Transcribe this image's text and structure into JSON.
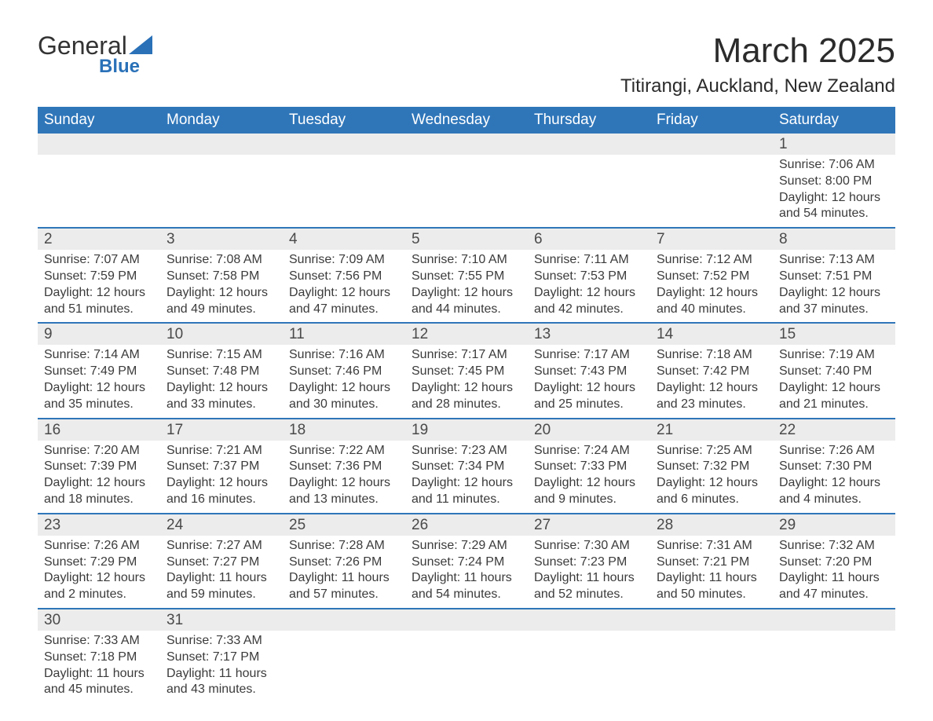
{
  "logo": {
    "main": "General",
    "sub": "Blue",
    "tri_color": "#2a71b8"
  },
  "title": "March 2025",
  "location": "Titirangi, Auckland, New Zealand",
  "colors": {
    "header_bg": "#2f76b9",
    "header_text": "#ffffff",
    "daynum_bg": "#ececec",
    "row_border": "#2f76b9",
    "body_text": "#3b3b3b",
    "page_bg": "#ffffff"
  },
  "fonts": {
    "title_size_pt": 33,
    "location_size_pt": 18,
    "header_size_pt": 14,
    "daynum_size_pt": 14,
    "info_size_pt": 12
  },
  "day_headers": [
    "Sunday",
    "Monday",
    "Tuesday",
    "Wednesday",
    "Thursday",
    "Friday",
    "Saturday"
  ],
  "weeks": [
    [
      null,
      null,
      null,
      null,
      null,
      null,
      {
        "n": "1",
        "sunrise": "7:06 AM",
        "sunset": "8:00 PM",
        "daylight": "12 hours and 54 minutes."
      }
    ],
    [
      {
        "n": "2",
        "sunrise": "7:07 AM",
        "sunset": "7:59 PM",
        "daylight": "12 hours and 51 minutes."
      },
      {
        "n": "3",
        "sunrise": "7:08 AM",
        "sunset": "7:58 PM",
        "daylight": "12 hours and 49 minutes."
      },
      {
        "n": "4",
        "sunrise": "7:09 AM",
        "sunset": "7:56 PM",
        "daylight": "12 hours and 47 minutes."
      },
      {
        "n": "5",
        "sunrise": "7:10 AM",
        "sunset": "7:55 PM",
        "daylight": "12 hours and 44 minutes."
      },
      {
        "n": "6",
        "sunrise": "7:11 AM",
        "sunset": "7:53 PM",
        "daylight": "12 hours and 42 minutes."
      },
      {
        "n": "7",
        "sunrise": "7:12 AM",
        "sunset": "7:52 PM",
        "daylight": "12 hours and 40 minutes."
      },
      {
        "n": "8",
        "sunrise": "7:13 AM",
        "sunset": "7:51 PM",
        "daylight": "12 hours and 37 minutes."
      }
    ],
    [
      {
        "n": "9",
        "sunrise": "7:14 AM",
        "sunset": "7:49 PM",
        "daylight": "12 hours and 35 minutes."
      },
      {
        "n": "10",
        "sunrise": "7:15 AM",
        "sunset": "7:48 PM",
        "daylight": "12 hours and 33 minutes."
      },
      {
        "n": "11",
        "sunrise": "7:16 AM",
        "sunset": "7:46 PM",
        "daylight": "12 hours and 30 minutes."
      },
      {
        "n": "12",
        "sunrise": "7:17 AM",
        "sunset": "7:45 PM",
        "daylight": "12 hours and 28 minutes."
      },
      {
        "n": "13",
        "sunrise": "7:17 AM",
        "sunset": "7:43 PM",
        "daylight": "12 hours and 25 minutes."
      },
      {
        "n": "14",
        "sunrise": "7:18 AM",
        "sunset": "7:42 PM",
        "daylight": "12 hours and 23 minutes."
      },
      {
        "n": "15",
        "sunrise": "7:19 AM",
        "sunset": "7:40 PM",
        "daylight": "12 hours and 21 minutes."
      }
    ],
    [
      {
        "n": "16",
        "sunrise": "7:20 AM",
        "sunset": "7:39 PM",
        "daylight": "12 hours and 18 minutes."
      },
      {
        "n": "17",
        "sunrise": "7:21 AM",
        "sunset": "7:37 PM",
        "daylight": "12 hours and 16 minutes."
      },
      {
        "n": "18",
        "sunrise": "7:22 AM",
        "sunset": "7:36 PM",
        "daylight": "12 hours and 13 minutes."
      },
      {
        "n": "19",
        "sunrise": "7:23 AM",
        "sunset": "7:34 PM",
        "daylight": "12 hours and 11 minutes."
      },
      {
        "n": "20",
        "sunrise": "7:24 AM",
        "sunset": "7:33 PM",
        "daylight": "12 hours and 9 minutes."
      },
      {
        "n": "21",
        "sunrise": "7:25 AM",
        "sunset": "7:32 PM",
        "daylight": "12 hours and 6 minutes."
      },
      {
        "n": "22",
        "sunrise": "7:26 AM",
        "sunset": "7:30 PM",
        "daylight": "12 hours and 4 minutes."
      }
    ],
    [
      {
        "n": "23",
        "sunrise": "7:26 AM",
        "sunset": "7:29 PM",
        "daylight": "12 hours and 2 minutes."
      },
      {
        "n": "24",
        "sunrise": "7:27 AM",
        "sunset": "7:27 PM",
        "daylight": "11 hours and 59 minutes."
      },
      {
        "n": "25",
        "sunrise": "7:28 AM",
        "sunset": "7:26 PM",
        "daylight": "11 hours and 57 minutes."
      },
      {
        "n": "26",
        "sunrise": "7:29 AM",
        "sunset": "7:24 PM",
        "daylight": "11 hours and 54 minutes."
      },
      {
        "n": "27",
        "sunrise": "7:30 AM",
        "sunset": "7:23 PM",
        "daylight": "11 hours and 52 minutes."
      },
      {
        "n": "28",
        "sunrise": "7:31 AM",
        "sunset": "7:21 PM",
        "daylight": "11 hours and 50 minutes."
      },
      {
        "n": "29",
        "sunrise": "7:32 AM",
        "sunset": "7:20 PM",
        "daylight": "11 hours and 47 minutes."
      }
    ],
    [
      {
        "n": "30",
        "sunrise": "7:33 AM",
        "sunset": "7:18 PM",
        "daylight": "11 hours and 45 minutes."
      },
      {
        "n": "31",
        "sunrise": "7:33 AM",
        "sunset": "7:17 PM",
        "daylight": "11 hours and 43 minutes."
      },
      null,
      null,
      null,
      null,
      null
    ]
  ],
  "labels": {
    "sunrise": "Sunrise: ",
    "sunset": "Sunset: ",
    "daylight": "Daylight: "
  }
}
